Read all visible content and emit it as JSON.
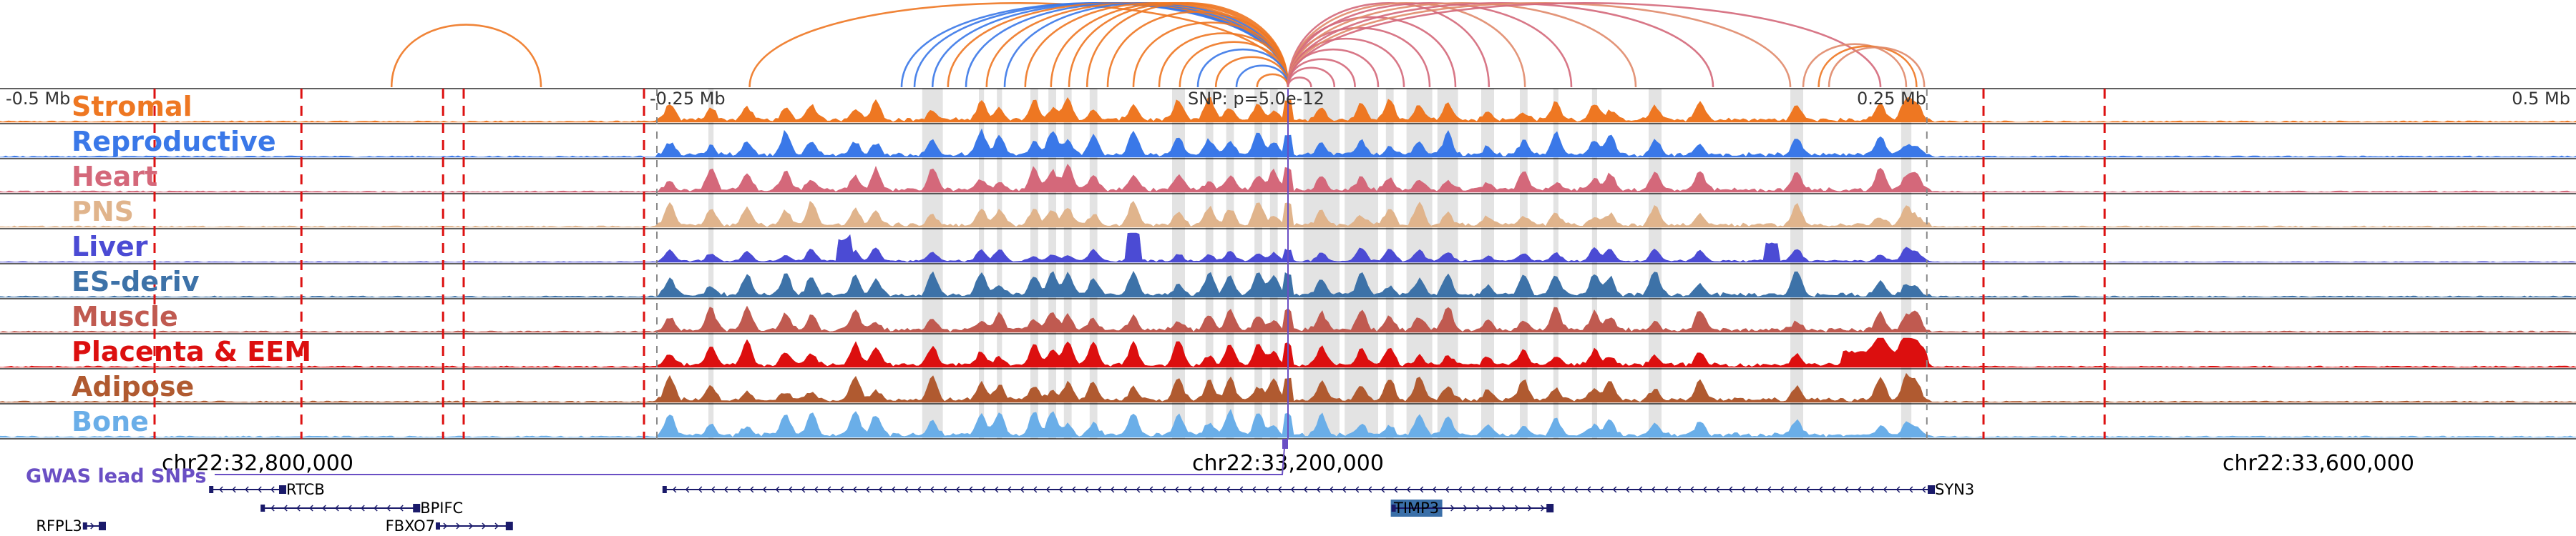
{
  "chart_data": {
    "type": "genome-browser",
    "region": {
      "chrom": "chr22",
      "start": 32700000,
      "end": 33700000
    },
    "snp": {
      "position": 33200000,
      "label": "SNP: p=5.0e-12"
    },
    "relative_ticks": [
      {
        "label": "-0.5 Mb",
        "pos": 32700000
      },
      {
        "label": "-0.25 Mb",
        "pos": 32950000
      },
      {
        "label": "0.25 Mb",
        "pos": 33450000
      },
      {
        "label": "0.5 Mb",
        "pos": 33700000
      }
    ],
    "coordinate_ticks": [
      {
        "label": "chr22:32,800,000",
        "pos": 32800000
      },
      {
        "label": "chr22:33,200,000",
        "pos": 33200000
      },
      {
        "label": "chr22:33,600,000",
        "pos": 33600000
      }
    ],
    "tracks": [
      {
        "name": "Stromal",
        "color": "#ee7722"
      },
      {
        "name": "Reproductive",
        "color": "#3a78e8"
      },
      {
        "name": "Heart",
        "color": "#d4687a"
      },
      {
        "name": "PNS",
        "color": "#e0b48c"
      },
      {
        "name": "Liver",
        "color": "#4b4bd4"
      },
      {
        "name": "ES-deriv",
        "color": "#3d72a8"
      },
      {
        "name": "Muscle",
        "color": "#c05a50"
      },
      {
        "name": "Placenta & EEM",
        "color": "#dc0f0f"
      },
      {
        "name": "Adipose",
        "color": "#b05a30"
      },
      {
        "name": "Bone",
        "color": "#6aaee8"
      }
    ],
    "gwas": {
      "label": "GWAS lead SNPs",
      "color": "#6a4fc4",
      "snps": [
        33200000
      ]
    },
    "boundaries": [
      32760000,
      32817000,
      32872000,
      32880000,
      32950000,
      33470000,
      33517000
    ],
    "highlights": [
      [
        32975000,
        32977000
      ],
      [
        33058000,
        33066000
      ],
      [
        33080000,
        33082000
      ],
      [
        33087000,
        33089000
      ],
      [
        33100000,
        33103000
      ],
      [
        33107000,
        33110000
      ],
      [
        33113000,
        33116000
      ],
      [
        33123000,
        33126000
      ],
      [
        33155000,
        33160000
      ],
      [
        33168000,
        33171000
      ],
      [
        33176000,
        33179000
      ],
      [
        33187000,
        33190000
      ],
      [
        33193000,
        33196000
      ],
      [
        33206000,
        33220000
      ],
      [
        33222000,
        33235000
      ],
      [
        33238000,
        33241000
      ],
      [
        33246000,
        33256000
      ],
      [
        33258000,
        33266000
      ],
      [
        33275000,
        33280000
      ],
      [
        33290000,
        33293000
      ],
      [
        33303000,
        33305000
      ],
      [
        33318000,
        33320000
      ],
      [
        33340000,
        33345000
      ],
      [
        33395000,
        33400000
      ],
      [
        33438000,
        33442000
      ]
    ],
    "loops": {
      "link_colors": [
        "#ee7722",
        "#3a78e8",
        "#d4687a",
        "#e08a6a"
      ],
      "arcs": [
        {
          "a": 32852000,
          "b": 32910000,
          "c": 0
        },
        {
          "a": 32991000,
          "b": 33200000,
          "c": 0
        },
        {
          "a": 33050000,
          "b": 33200000,
          "c": 1
        },
        {
          "a": 33055000,
          "b": 33200000,
          "c": 1
        },
        {
          "a": 33062000,
          "b": 33200000,
          "c": 1
        },
        {
          "a": 33068000,
          "b": 33200000,
          "c": 0
        },
        {
          "a": 33075000,
          "b": 33200000,
          "c": 1
        },
        {
          "a": 33083000,
          "b": 33200000,
          "c": 0
        },
        {
          "a": 33090000,
          "b": 33200000,
          "c": 1
        },
        {
          "a": 33098000,
          "b": 33200000,
          "c": 0
        },
        {
          "a": 33108000,
          "b": 33200000,
          "c": 0
        },
        {
          "a": 33115000,
          "b": 33200000,
          "c": 0
        },
        {
          "a": 33122000,
          "b": 33200000,
          "c": 0
        },
        {
          "a": 33130000,
          "b": 33200000,
          "c": 0
        },
        {
          "a": 33140000,
          "b": 33200000,
          "c": 0
        },
        {
          "a": 33150000,
          "b": 33200000,
          "c": 0
        },
        {
          "a": 33158000,
          "b": 33200000,
          "c": 0
        },
        {
          "a": 33165000,
          "b": 33200000,
          "c": 1
        },
        {
          "a": 33172000,
          "b": 33200000,
          "c": 0
        },
        {
          "a": 33180000,
          "b": 33200000,
          "c": 1
        },
        {
          "a": 33188000,
          "b": 33200000,
          "c": 0
        },
        {
          "a": 33200000,
          "b": 33209000,
          "c": 2
        },
        {
          "a": 33200000,
          "b": 33218000,
          "c": 2
        },
        {
          "a": 33200000,
          "b": 33226000,
          "c": 2
        },
        {
          "a": 33200000,
          "b": 33235000,
          "c": 2
        },
        {
          "a": 33200000,
          "b": 33245000,
          "c": 2
        },
        {
          "a": 33200000,
          "b": 33255000,
          "c": 2
        },
        {
          "a": 33200000,
          "b": 33265000,
          "c": 2
        },
        {
          "a": 33200000,
          "b": 33278000,
          "c": 2
        },
        {
          "a": 33200000,
          "b": 33292000,
          "c": 3
        },
        {
          "a": 33200000,
          "b": 33310000,
          "c": 2
        },
        {
          "a": 33200000,
          "b": 33335000,
          "c": 3
        },
        {
          "a": 33200000,
          "b": 33365000,
          "c": 2
        },
        {
          "a": 33200000,
          "b": 33395000,
          "c": 3
        },
        {
          "a": 33200000,
          "b": 33430000,
          "c": 2
        },
        {
          "a": 33400000,
          "b": 33440000,
          "c": 3
        },
        {
          "a": 33406000,
          "b": 33444000,
          "c": 0
        },
        {
          "a": 33410000,
          "b": 33447000,
          "c": 3
        }
      ]
    },
    "genes": [
      {
        "name": "RTCB",
        "start": 32782000,
        "end": 32810000,
        "strand": "-",
        "row": 0
      },
      {
        "name": "BPIFC",
        "start": 32802000,
        "end": 32862000,
        "strand": "-",
        "row": 1
      },
      {
        "name": "SYN3",
        "start": 32958000,
        "end": 33450000,
        "strand": "-",
        "row": 0
      },
      {
        "name": "RFPL3",
        "start": 32733000,
        "end": 32740000,
        "strand": "+",
        "row": 2
      },
      {
        "name": "FBXO7",
        "start": 32870000,
        "end": 32898000,
        "strand": "+",
        "row": 2
      },
      {
        "name": "TIMP3",
        "start": 33241000,
        "end": 33302000,
        "strand": "+",
        "row": 1,
        "highlight": true
      }
    ]
  }
}
